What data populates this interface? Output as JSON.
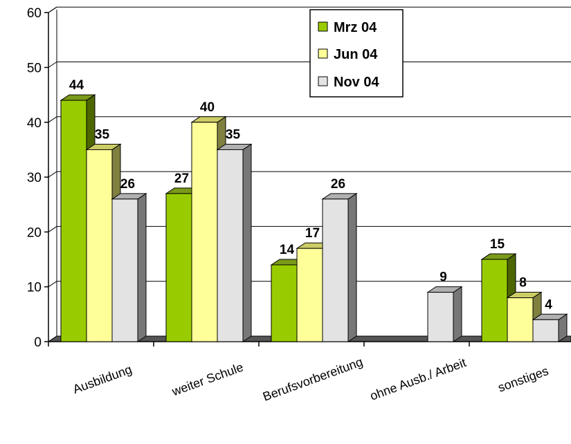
{
  "chart_data": {
    "type": "bar",
    "categories": [
      "Ausbildung",
      "weiter Schule",
      "Berufsvorbereitung",
      "ohne Ausb./ Arbeit",
      "sonstiges"
    ],
    "series": [
      {
        "name": "Mrz 04",
        "values": [
          44,
          27,
          14,
          null,
          15
        ],
        "color": "#99cc00",
        "dark": "#4d6600",
        "light": "#7a9a1a"
      },
      {
        "name": "Jun 04",
        "values": [
          35,
          40,
          17,
          null,
          8
        ],
        "color": "#ffff99",
        "dark": "#808040",
        "light": "#cccc66"
      },
      {
        "name": "Nov 04",
        "values": [
          26,
          35,
          26,
          9,
          4
        ],
        "color": "#e3e3e3",
        "dark": "#777777",
        "light": "#b0b0b0"
      }
    ],
    "yticks": [
      0,
      10,
      20,
      30,
      40,
      50,
      60
    ],
    "ylim": [
      0,
      60
    ],
    "grid": true,
    "legend": "top-right",
    "data_labels": true,
    "style": "3d-clustered-column"
  }
}
